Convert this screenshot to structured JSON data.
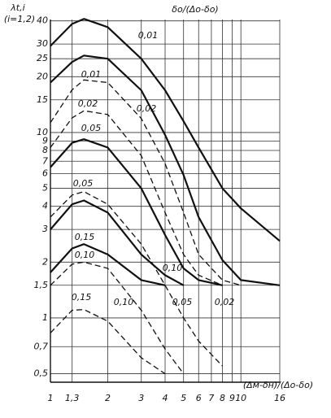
{
  "chart_data": {
    "type": "line",
    "title": "δo/(Δo-δo)",
    "y_label": "λt,i",
    "y_sublabel": "(i=1,2)",
    "x_label": "(Δм-δн)/(Δo-δo)",
    "log_x": true,
    "log_y": true,
    "grid": true,
    "xlim": [
      1,
      16
    ],
    "ylim": [
      0.45,
      45
    ],
    "xticks": [
      1,
      {
        "value": 1.3,
        "label": "1,3"
      },
      2,
      3,
      4,
      5,
      6,
      7,
      8,
      9,
      10,
      16
    ],
    "yticks": [
      {
        "value": 0.5,
        "label": "0,5"
      },
      {
        "value": 0.7,
        "label": "0,7"
      },
      1,
      {
        "value": 1.5,
        "label": "1,5"
      },
      2,
      3,
      4,
      5,
      6,
      7,
      8,
      9,
      10,
      15,
      20,
      25,
      30,
      40
    ],
    "x": [
      1,
      1.3,
      1.5,
      2,
      3,
      4,
      5,
      6,
      8,
      10,
      16
    ],
    "series": [
      {
        "name": "0,01",
        "color": "#111",
        "style": "solid",
        "values": [
          29.3,
          38.5,
          41,
          37,
          25,
          16.9,
          11.5,
          8.3,
          5,
          3.9,
          2.6
        ]
      },
      {
        "name": "0,02",
        "color": "#111",
        "style": "solid",
        "values": [
          18.6,
          24,
          26,
          25,
          16.9,
          9.7,
          5.9,
          3.5,
          2.05,
          1.6,
          1.5
        ]
      },
      {
        "name": "0,01",
        "color": "#111",
        "style": "dashed",
        "values": [
          11.3,
          17,
          19.2,
          18.6,
          11.9,
          6.8,
          3.7,
          2.2,
          1.6,
          1.5,
          null
        ]
      },
      {
        "name": "0,02",
        "color": "#111",
        "style": "dashed",
        "values": [
          8.3,
          12,
          13.1,
          12.5,
          7.5,
          3.7,
          2.2,
          1.7,
          1.5,
          null,
          null
        ]
      },
      {
        "name": "0,05",
        "color": "#111",
        "style": "solid",
        "values": [
          6.5,
          8.8,
          9.2,
          8.3,
          5,
          2.8,
          1.85,
          1.6,
          1.5,
          null,
          null
        ]
      },
      {
        "name": "0,05",
        "color": "#111",
        "style": "dashed",
        "values": [
          3.5,
          4.6,
          4.8,
          4.1,
          2.5,
          1.5,
          1.0,
          0.75,
          0.55,
          null,
          null
        ]
      },
      {
        "name": "0,10",
        "color": "#111",
        "style": "solid",
        "values": [
          3.0,
          4.1,
          4.3,
          3.7,
          2.2,
          1.7,
          1.5,
          null,
          null,
          null,
          null
        ]
      },
      {
        "name": "0,15",
        "color": "#111",
        "style": "solid",
        "values": [
          1.76,
          2.37,
          2.5,
          2.2,
          1.6,
          1.5,
          null,
          null,
          null,
          null,
          null
        ]
      },
      {
        "name": "0,10",
        "color": "#111",
        "style": "dashed",
        "values": [
          1.5,
          1.95,
          2.0,
          1.85,
          1.1,
          0.68,
          0.5,
          null,
          null,
          null,
          null
        ]
      },
      {
        "name": "0,15",
        "color": "#111",
        "style": "dashed",
        "values": [
          0.83,
          1.1,
          1.11,
          0.96,
          0.61,
          0.5,
          null,
          null,
          null,
          null,
          null
        ]
      }
    ],
    "annotations": [
      "0,10",
      "0,05",
      "0,02"
    ]
  }
}
